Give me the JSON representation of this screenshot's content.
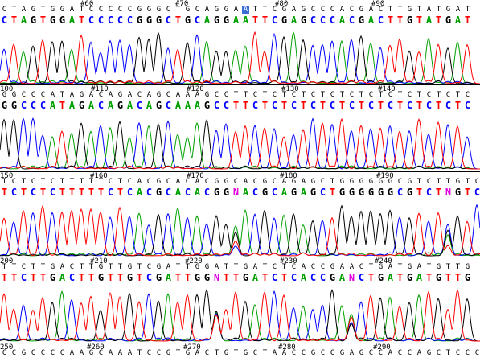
{
  "panels": [
    {
      "index_labels": [
        "#60",
        "#70",
        "#80",
        "#90"
      ],
      "original": "CTAGTGGATCCCCCGGGCTGCAGGAATTCGAGCCCACGACTTGTATGAT",
      "called": "CTAGTGGATCCCCCGGGCTGCAGGAATTCGAGCCCACGACTTGTATGAT",
      "highlight_index": 25
    },
    {
      "index_labels": [
        "100",
        "#110",
        "#120",
        "#130",
        "#140"
      ],
      "original": "GGCCCATAGACAGACAGCAAAGCCTTCTCTCTCTCTCTCTCTCTCTCTC",
      "called": "GGCCCATAGACAGACAGCAAAGCCTTCTCTCTCTCTCTCTCTCTCTCTC",
      "highlight_index": -1
    },
    {
      "index_labels": [
        "150",
        "#160",
        "#170",
        "#180",
        "#190"
      ],
      "original": "TCTCTCTTTTTCTCACGCACACGGCACGCAGAGCTGGGGGGCGTCTTGTCG",
      "called": "TCTCTCTTTTTCTCACGCACACGGNACGCAGAGCTGGGGGGCGTCTNGTCG",
      "highlight_index": -1
    },
    {
      "index_labels": [
        "200",
        "#210",
        "#220",
        "#230",
        "#240"
      ],
      "original": "TTCTTGACTTGTTGTCGATTGGATTGATCTCACCGAACTGATGATGTTG",
      "called": "TTCTTGACTTGTTGTCGATTGGNTTGATCTCACCGANCTGATGATGTTG",
      "highlight_index": -1
    },
    {
      "index_labels": [
        "250",
        "#260",
        "#270",
        "#280",
        "#290"
      ],
      "original": "CCGCCCCAAGCAAATCCGTGACTGTGCTAACCGCCGAGCCACCAGCTCCC",
      "called": "",
      "highlight_index": -1
    }
  ],
  "colors": {
    "A": "#00a000",
    "C": "#0000ff",
    "G": "#000000",
    "T": "#ff0000",
    "N": "#e000e0"
  }
}
